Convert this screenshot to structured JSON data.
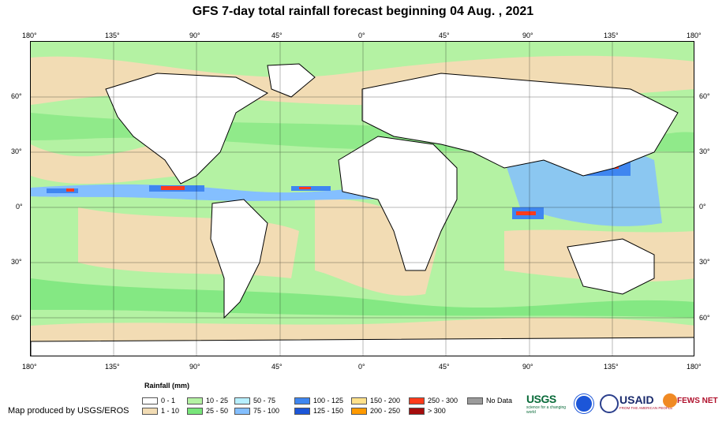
{
  "title": "GFS 7-day total rainfall forecast beginning 04 Aug. , 2021",
  "lon_ticks": [
    "180°",
    "135°",
    "90°",
    "45°",
    "0°",
    "45°",
    "90°",
    "135°",
    "180°"
  ],
  "lat_ticks": [
    "60°",
    "30°",
    "0°",
    "30°",
    "60°"
  ],
  "legend": {
    "title": "Rainfall (mm)",
    "bins": [
      {
        "label": "0 - 1",
        "color": "#ffffff"
      },
      {
        "label": "1 - 10",
        "color": "#f2dcb4"
      },
      {
        "label": "10 - 25",
        "color": "#b4f2a3"
      },
      {
        "label": "25 - 50",
        "color": "#78e57a"
      },
      {
        "label": "50 - 75",
        "color": "#b7efff"
      },
      {
        "label": "75 - 100",
        "color": "#84bfff"
      },
      {
        "label": "100 - 125",
        "color": "#3f86f0"
      },
      {
        "label": "125 - 150",
        "color": "#1c56d8"
      },
      {
        "label": "150 - 200",
        "color": "#ffe18a"
      },
      {
        "label": "200 - 250",
        "color": "#ff9a00"
      },
      {
        "label": "250 - 300",
        "color": "#ff3b1b"
      },
      {
        "label": "> 300",
        "color": "#a50d0d"
      },
      {
        "label": "No Data",
        "color": "#9b9b9b"
      }
    ]
  },
  "credit": "Map produced by USGS/EROS",
  "logos": {
    "usgs": "USGS",
    "usgs_tag": "science for a changing world",
    "usaid": "USAID",
    "usaid_tag": "FROM THE AMERICAN PEOPLE",
    "fewsnet": "FEWS NET"
  }
}
